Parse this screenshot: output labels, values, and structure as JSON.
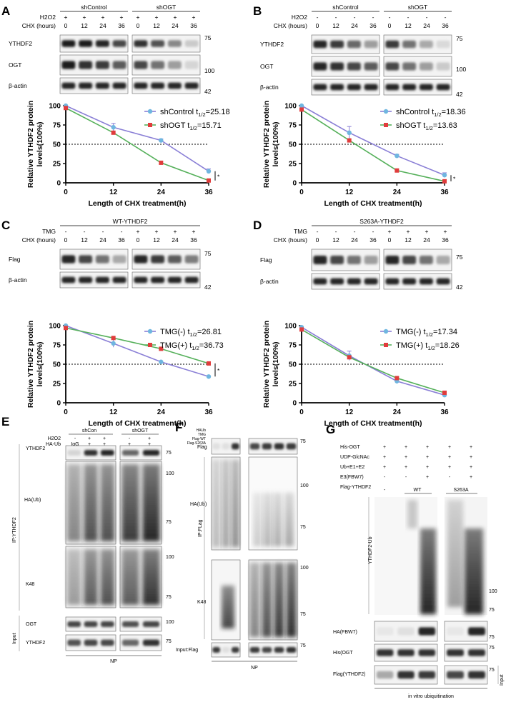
{
  "panels": {
    "A": {
      "letter": "A",
      "groups": [
        "shControl",
        "shOGT"
      ],
      "row_labels": [
        "H2O2",
        "CHX  (hours)"
      ],
      "row_values": [
        [
          "+",
          "+",
          "+",
          "+",
          "+",
          "+",
          "+",
          "+"
        ],
        [
          "0",
          "12",
          "24",
          "36",
          "0",
          "12",
          "24",
          "36"
        ]
      ],
      "blots": [
        "YTHDF2",
        "OGT",
        "β-actin"
      ],
      "mw": [
        "75",
        "100",
        "42"
      ]
    },
    "B": {
      "letter": "B",
      "groups": [
        "shControl",
        "shOGT"
      ],
      "row_labels": [
        "H2O2",
        "CHX  (hours)"
      ],
      "row_values": [
        [
          "-",
          "-",
          "-",
          "-",
          "-",
          "-",
          "-",
          "-"
        ],
        [
          "0",
          "12",
          "24",
          "36",
          "0",
          "12",
          "24",
          "36"
        ]
      ],
      "blots": [
        "YTHDF2",
        "OGT",
        "β-actin"
      ],
      "mw": [
        "75",
        "100",
        "42"
      ]
    },
    "C": {
      "letter": "C",
      "groups": [
        "WT-YTHDF2"
      ],
      "row_labels": [
        "TMG",
        "CHX  (hours)"
      ],
      "row_values": [
        [
          "-",
          "-",
          "-",
          "-",
          "+",
          "+",
          "+",
          "+"
        ],
        [
          "0",
          "12",
          "24",
          "36",
          "0",
          "12",
          "24",
          "36"
        ]
      ],
      "blots": [
        "Flag",
        "β-actin"
      ],
      "mw": [
        "75",
        "42"
      ]
    },
    "D": {
      "letter": "D",
      "groups": [
        "S263A-YTHDF2"
      ],
      "row_labels": [
        "TMG",
        "CHX  (hours)"
      ],
      "row_values": [
        [
          "-",
          "-",
          "-",
          "-",
          "+",
          "+",
          "+",
          "+"
        ],
        [
          "0",
          "12",
          "24",
          "36",
          "0",
          "12",
          "24",
          "36"
        ]
      ],
      "blots": [
        "Flag",
        "β-actin"
      ],
      "mw": [
        "75",
        "42"
      ]
    },
    "E": {
      "letter": "E",
      "groups": [
        "shCon",
        "shOGT"
      ],
      "row_labels": [
        "H2O2",
        "HA-Ub"
      ],
      "row_values": [
        [
          "-",
          "+",
          "+",
          "-",
          "+"
        ],
        [
          "IgG",
          "+",
          "+",
          "+",
          "+"
        ]
      ],
      "side_label": "IP:YTHDF2",
      "input_label": "Input",
      "blots": [
        "YTHDF2",
        "HA(Ub)",
        "K48",
        "OGT",
        "YTHDF2"
      ],
      "mw": [
        "75",
        "100",
        "75",
        "100",
        "75",
        "100",
        "75"
      ],
      "footer": "NP"
    },
    "F": {
      "letter": "F",
      "row_labels": [
        "HAUb",
        "TMG",
        "Flag-WT",
        "Flag-S263A"
      ],
      "side_label": "IP:FLag",
      "blots": [
        "Flag",
        "HA(Ub)",
        "K48",
        "Input:Flag"
      ],
      "mw": [
        "75",
        "100",
        "75",
        "100",
        "75",
        "75"
      ],
      "footer": "NP"
    },
    "G": {
      "letter": "G",
      "row_labels": [
        "His-OGT",
        "UDP-GlcNAc",
        "Ub+E1+E2",
        "E3(FBW7)",
        "Flag-YTHDF2"
      ],
      "row_values": [
        [
          "+",
          "+",
          "+",
          "+",
          "+"
        ],
        [
          "+",
          "+",
          "+",
          "+",
          "+"
        ],
        [
          "+",
          "+",
          "+",
          "+",
          "+"
        ],
        [
          "-",
          "-",
          "+",
          "-",
          "+"
        ]
      ],
      "lane_groups": [
        "-",
        "WT",
        "S263A"
      ],
      "blots": [
        "YTHDF2-Ub",
        "HA(FBW7)",
        "His(OGT",
        "Flag(YTHDF2)"
      ],
      "mw": [
        "100",
        "75",
        "75",
        "75",
        "75"
      ],
      "input_label": "Input",
      "footer": "in vitro ubiquitination"
    }
  },
  "chart_data": [
    {
      "id": "A",
      "type": "line",
      "x": [
        0,
        12,
        24,
        36
      ],
      "series": [
        {
          "name": "shControl t1/2=25.18",
          "label": "shControl t",
          "sub": "1/2",
          "suffix": "=25.18",
          "color": "#8a7fd6",
          "marker": "#6fb6e0",
          "shape": "circle",
          "values": [
            100,
            72,
            55,
            15
          ],
          "err": [
            0,
            5,
            2,
            3
          ]
        },
        {
          "name": "shOGT t1/2=15.71",
          "label": "shOGT t",
          "sub": "1/2",
          "suffix": "=15.71",
          "color": "#55b05a",
          "marker": "#e03c3c",
          "shape": "square",
          "values": [
            97,
            65,
            26,
            3
          ],
          "err": [
            0,
            0,
            0,
            0
          ]
        }
      ],
      "xlabel": "Length of CHX treatment(h)",
      "ylabel": "Relative YTHDF2 protein levels(100%)",
      "ylabel_lines": [
        "Relative YTHDF2 protein",
        "levels(100%)"
      ],
      "xticks": [
        "0",
        "12",
        "24",
        "36"
      ],
      "yticks": [
        "0",
        "25",
        "50",
        "75",
        "100"
      ],
      "xlim": [
        0,
        36
      ],
      "ylim": [
        0,
        100
      ],
      "ref_line": 50,
      "significance": "*"
    },
    {
      "id": "B",
      "type": "line",
      "x": [
        0,
        12,
        24,
        36
      ],
      "series": [
        {
          "name": "shControl t1/2=18.36",
          "label": "shControl t",
          "sub": "1/2",
          "suffix": "=18.36",
          "color": "#8a7fd6",
          "marker": "#6fb6e0",
          "shape": "circle",
          "values": [
            100,
            65,
            35,
            10
          ],
          "err": [
            0,
            8,
            2,
            3
          ]
        },
        {
          "name": "shOGT t1/2=13.63",
          "label": "shOGT t",
          "sub": "1/2",
          "suffix": "=13.63",
          "color": "#55b05a",
          "marker": "#e03c3c",
          "shape": "square",
          "values": [
            95,
            55,
            16,
            2
          ],
          "err": [
            0,
            0,
            0,
            0
          ]
        }
      ],
      "xlabel": "Length of CHX treatment(h)",
      "ylabel": "Relative YTHDF2 protein levels(100%)",
      "ylabel_lines": [
        "Relative YTHDF2 protein",
        "levels(100%)"
      ],
      "xticks": [
        "0",
        "12",
        "24",
        "36"
      ],
      "yticks": [
        "0",
        "25",
        "50",
        "75",
        "100"
      ],
      "xlim": [
        0,
        36
      ],
      "ylim": [
        0,
        100
      ],
      "ref_line": 50,
      "significance": "*"
    },
    {
      "id": "C",
      "type": "line",
      "x": [
        0,
        12,
        24,
        36
      ],
      "series": [
        {
          "name": "TMG(-) t1/2=26.81",
          "label": "TMG(-) t",
          "sub": "1/2",
          "suffix": "=26.81",
          "color": "#8a7fd6",
          "marker": "#6fb6e0",
          "shape": "circle",
          "values": [
            100,
            77,
            53,
            34
          ],
          "err": [
            0,
            5,
            0,
            0
          ]
        },
        {
          "name": "TMG(+) t1/2=36.73",
          "label": "TMG(+) t",
          "sub": "1/2",
          "suffix": "=36.73",
          "color": "#55b05a",
          "marker": "#e03c3c",
          "shape": "square",
          "values": [
            97,
            84,
            70,
            51
          ],
          "err": [
            0,
            0,
            0,
            0
          ]
        }
      ],
      "xlabel": "Length of CHX treatment(h)",
      "ylabel": "Relative YTHDF2 protein levels(100%)",
      "ylabel_lines": [
        "Relative YTHDF2 protein",
        "levels(100%)"
      ],
      "xticks": [
        "0",
        "12",
        "24",
        "36"
      ],
      "yticks": [
        "0",
        "25",
        "50",
        "75",
        "100"
      ],
      "xlim": [
        0,
        36
      ],
      "ylim": [
        0,
        100
      ],
      "ref_line": 50,
      "significance": "*"
    },
    {
      "id": "D",
      "type": "line",
      "x": [
        0,
        12,
        24,
        36
      ],
      "series": [
        {
          "name": "TMG(-) t1/2=17.34",
          "label": "TMG(-) t",
          "sub": "1/2",
          "suffix": "=17.34",
          "color": "#8a7fd6",
          "marker": "#6fb6e0",
          "shape": "circle",
          "values": [
            98,
            61,
            28,
            10
          ],
          "err": [
            0,
            6,
            3,
            2
          ]
        },
        {
          "name": "TMG(+) t1/2=18.26",
          "label": "TMG(+) t",
          "sub": "1/2",
          "suffix": "=18.26",
          "color": "#55b05a",
          "marker": "#e03c3c",
          "shape": "square",
          "values": [
            95,
            59,
            32,
            13
          ],
          "err": [
            0,
            0,
            0,
            0
          ]
        }
      ],
      "xlabel": "Length of CHX treatment(h)",
      "ylabel": "Relative YTHDF2 protein levels(100%)",
      "ylabel_lines": [
        "Relative YTHDF2 protein",
        "levels(100%)"
      ],
      "xticks": [
        "0",
        "12",
        "24",
        "36"
      ],
      "yticks": [
        "0",
        "25",
        "50",
        "75",
        "100"
      ],
      "xlim": [
        0,
        36
      ],
      "ylim": [
        0,
        100
      ],
      "ref_line": 50,
      "significance": ""
    }
  ]
}
